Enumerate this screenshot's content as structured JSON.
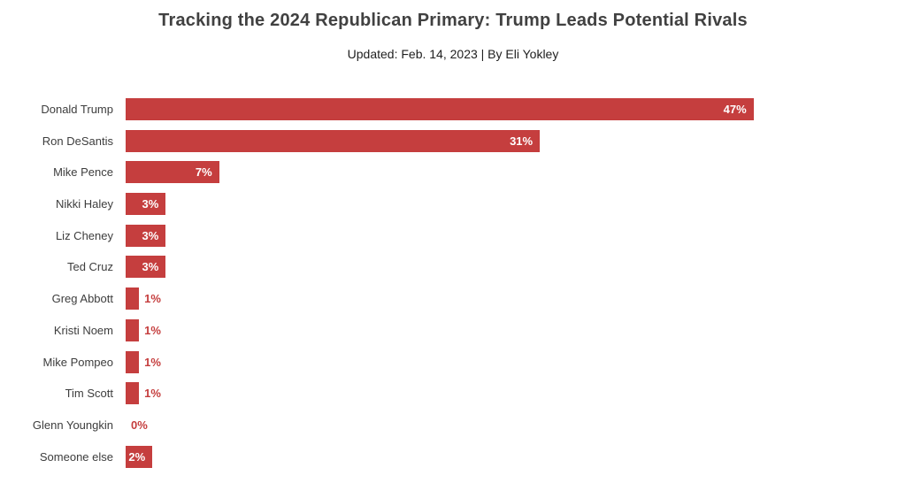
{
  "header": {
    "title": "Tracking the 2024 Republican Primary: Trump Leads Potential Rivals",
    "subtitle": "Updated: Feb. 14, 2023 | By Eli Yokley"
  },
  "colors": {
    "bar": "#c53e3e",
    "inside_label": "#ffffff",
    "title_text": "#414141",
    "category_text": "#3d3d3d"
  },
  "chart_data": {
    "type": "bar",
    "orientation": "horizontal",
    "title": "Tracking the 2024 Republican Primary: Trump Leads Potential Rivals",
    "subtitle": "Updated: Feb. 14, 2023 | By Eli Yokley",
    "categories": [
      "Donald Trump",
      "Ron DeSantis",
      "Mike Pence",
      "Nikki Haley",
      "Liz Cheney",
      "Ted Cruz",
      "Greg Abbott",
      "Kristi Noem",
      "Mike Pompeo",
      "Tim Scott",
      "Glenn Youngkin",
      "Someone else"
    ],
    "values": [
      47,
      31,
      7,
      3,
      3,
      3,
      1,
      1,
      1,
      1,
      0,
      2
    ],
    "value_labels": [
      "47%",
      "31%",
      "7%",
      "3%",
      "3%",
      "3%",
      "1%",
      "1%",
      "1%",
      "1%",
      "0%",
      "2%"
    ],
    "xlabel": "",
    "ylabel": "",
    "xlim": [
      0,
      50
    ],
    "grid": false,
    "legend": false,
    "bar_color": "#c53e3e",
    "inside_label_threshold": 2
  }
}
